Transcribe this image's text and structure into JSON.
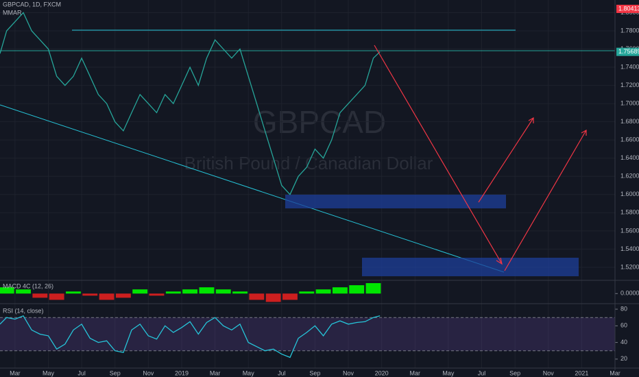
{
  "chart_data": [
    {
      "type": "line",
      "title": "GBPCAD, 1D, FXCM",
      "indicator": "MMAR",
      "watermark": "GBPCAD",
      "watermark_subtitle": "British Pound / Canadian Dollar",
      "color": "#26a69a",
      "x": [
        1.1,
        1.5,
        2,
        2.5,
        3,
        3.5,
        4,
        4.5,
        5,
        5.5,
        6,
        6.5,
        7,
        7.5,
        8,
        8.5,
        9,
        9.5,
        10,
        10.5,
        11,
        11.5,
        12,
        12.5,
        13,
        13.5,
        14,
        14.5,
        15,
        15.5,
        16,
        16.5,
        17,
        17.5,
        18,
        18.5,
        19,
        19.5,
        20,
        20.5,
        21,
        21.5,
        22,
        22.5,
        23,
        23.5,
        23.9
      ],
      "values": [
        1.755,
        1.78,
        1.79,
        1.8,
        1.78,
        1.77,
        1.76,
        1.73,
        1.72,
        1.73,
        1.75,
        1.73,
        1.71,
        1.7,
        1.68,
        1.67,
        1.69,
        1.71,
        1.7,
        1.69,
        1.71,
        1.7,
        1.72,
        1.74,
        1.72,
        1.75,
        1.77,
        1.76,
        1.75,
        1.76,
        1.73,
        1.7,
        1.67,
        1.64,
        1.61,
        1.6,
        1.62,
        1.63,
        1.65,
        1.64,
        1.66,
        1.69,
        1.7,
        1.71,
        1.72,
        1.75,
        1.757
      ],
      "xlim": [
        1.1,
        38
      ],
      "ylim": [
        1.5064,
        1.8139
      ],
      "xticks": [
        {
          "value": 2,
          "label": "Mar"
        },
        {
          "value": 4,
          "label": "May"
        },
        {
          "value": 6,
          "label": "Jul"
        },
        {
          "value": 8,
          "label": "Sep"
        },
        {
          "value": 10,
          "label": "Nov"
        },
        {
          "value": 12,
          "label": "2019"
        },
        {
          "value": 14,
          "label": "Mar"
        },
        {
          "value": 16,
          "label": "May"
        },
        {
          "value": 18,
          "label": "Jul"
        },
        {
          "value": 20,
          "label": "Sep"
        },
        {
          "value": 22,
          "label": "Nov"
        },
        {
          "value": 24,
          "label": "2020"
        },
        {
          "value": 26,
          "label": "Mar"
        },
        {
          "value": 28,
          "label": "May"
        },
        {
          "value": 30,
          "label": "Jul"
        },
        {
          "value": 32,
          "label": "Sep"
        },
        {
          "value": 34,
          "label": "Nov"
        },
        {
          "value": 36,
          "label": "2021"
        },
        {
          "value": 38,
          "label": "Mar"
        }
      ],
      "yticks": [
        {
          "value": 1.52,
          "label": "1.52000"
        },
        {
          "value": 1.54,
          "label": "1.54000"
        },
        {
          "value": 1.56,
          "label": "1.56000"
        },
        {
          "value": 1.58,
          "label": "1.58000"
        },
        {
          "value": 1.6,
          "label": "1.60000"
        },
        {
          "value": 1.62,
          "label": "1.62000"
        },
        {
          "value": 1.64,
          "label": "1.64000"
        },
        {
          "value": 1.66,
          "label": "1.66000"
        },
        {
          "value": 1.68,
          "label": "1.68000"
        },
        {
          "value": 1.7,
          "label": "1.70000"
        },
        {
          "value": 1.72,
          "label": "1.72000"
        },
        {
          "value": 1.74,
          "label": "1.74000"
        },
        {
          "value": 1.76,
          "label": "1.76000"
        },
        {
          "value": 1.78,
          "label": "1.78000"
        },
        {
          "value": 1.8,
          "label": "1.80000"
        }
      ],
      "price_tags": [
        {
          "value": 1.80413,
          "label": "1.80413",
          "color": "#f23645"
        },
        {
          "value": 1.75689,
          "label": "1.75689",
          "color": "#26a69a"
        }
      ]
    },
    {
      "type": "bar",
      "title": "MACD 4C (12, 26)",
      "up_color": "#00e600",
      "down_color": "#cc1f1f",
      "x": [
        1.5,
        2.5,
        3.5,
        4.5,
        5.5,
        6.5,
        7.5,
        8.5,
        9.5,
        10.5,
        11.5,
        12.5,
        13.5,
        14.5,
        15.5,
        16.5,
        17.5,
        18.5,
        19.5,
        20.5,
        21.5,
        22.5,
        23.5
      ],
      "values": [
        0.003,
        0.002,
        -0.002,
        -0.003,
        0.001,
        -0.001,
        -0.003,
        -0.002,
        0.002,
        -0.001,
        0.001,
        0.002,
        0.003,
        0.002,
        0.001,
        -0.003,
        -0.004,
        -0.003,
        0.001,
        0.002,
        0.003,
        0.004,
        0.005
      ],
      "ylim": [
        -0.0045,
        0.006
      ],
      "yticks": [
        {
          "value": 0,
          "label": "0.00000"
        }
      ]
    },
    {
      "type": "line",
      "title": "RSI (14, close)",
      "color": "#26c6da",
      "band": [
        30,
        70
      ],
      "x": [
        1.1,
        1.5,
        2,
        2.5,
        3,
        3.5,
        4,
        4.5,
        5,
        5.5,
        6,
        6.5,
        7,
        7.5,
        8,
        8.5,
        9,
        9.5,
        10,
        10.5,
        11,
        11.5,
        12,
        12.5,
        13,
        13.5,
        14,
        14.5,
        15,
        15.5,
        16,
        16.5,
        17,
        17.5,
        18,
        18.5,
        19,
        19.5,
        20,
        20.5,
        21,
        21.5,
        22,
        22.5,
        23,
        23.5,
        23.9
      ],
      "values": [
        62,
        70,
        68,
        72,
        55,
        50,
        48,
        32,
        38,
        55,
        62,
        45,
        40,
        42,
        30,
        28,
        55,
        62,
        48,
        44,
        60,
        52,
        58,
        65,
        50,
        64,
        70,
        60,
        55,
        62,
        40,
        35,
        30,
        32,
        26,
        22,
        45,
        52,
        60,
        48,
        62,
        66,
        62,
        64,
        65,
        70,
        72
      ],
      "ylim": [
        10,
        85
      ],
      "yticks": [
        20,
        40,
        60,
        80
      ]
    }
  ]
}
